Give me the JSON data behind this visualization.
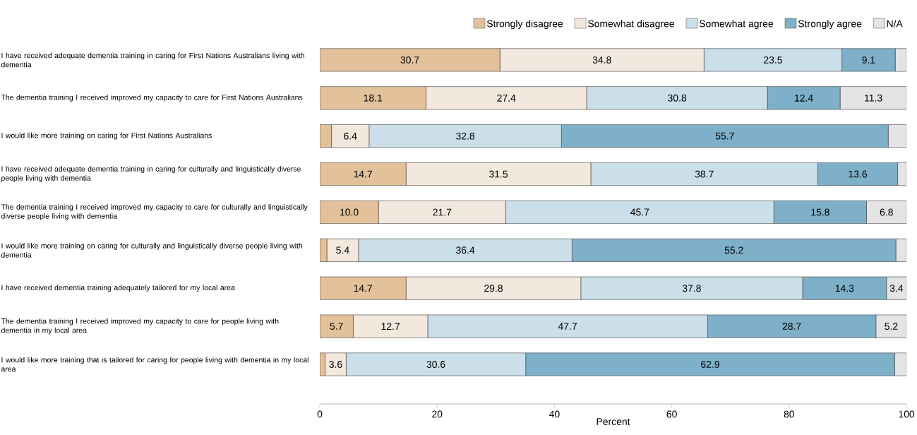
{
  "chart_data": {
    "type": "bar",
    "orientation": "horizontal",
    "stacked": true,
    "xlabel": "Percent",
    "xlim": [
      0,
      100
    ],
    "xticks": [
      0,
      20,
      40,
      60,
      80,
      100
    ],
    "legend": "top",
    "grid": false,
    "categories": [
      "I have received adequate dementia training in caring for First Nations Australians living with dementia",
      "The dementia training I received improved my capacity to care for First Nations Australians",
      "I would like more training on caring for First Nations Australians",
      "I have received adequate dementia training in caring for culturally and linguistically diverse people living with dementia",
      "The dementia training I received improved my capacity to care for culturally and linguistically diverse people living with dementia",
      "I would like more training on caring for culturally and linguistically diverse people living with dementia",
      "I have received dementia training adequately tailored for my local area",
      "The dementia training I received improved my capacity to care for people living with dementia in my local area",
      "I would like more training that is tailored for caring for people living with dementia in my local area"
    ],
    "series": [
      {
        "name": "Strongly disagree",
        "color": "#e3c29b",
        "values": [
          30.7,
          18.1,
          2.0,
          14.7,
          10.0,
          1.2,
          14.7,
          5.7,
          0.9
        ],
        "value_labels": [
          "30.7",
          "18.1",
          null,
          "14.7",
          "10.0",
          null,
          "14.7",
          "5.7",
          null
        ]
      },
      {
        "name": "Somewhat disagree",
        "color": "#f3e8dd",
        "values": [
          34.8,
          27.4,
          6.4,
          31.5,
          21.7,
          5.4,
          29.8,
          12.7,
          3.6
        ],
        "value_labels": [
          "34.8",
          "27.4",
          "6.4",
          "31.5",
          "21.7",
          "5.4",
          "29.8",
          "12.7",
          "3.6"
        ]
      },
      {
        "name": "Somewhat agree",
        "color": "#cadfe9",
        "values": [
          23.5,
          30.8,
          32.8,
          38.7,
          45.7,
          36.4,
          37.8,
          47.7,
          30.6
        ],
        "value_labels": [
          "23.5",
          "30.8",
          "32.8",
          "38.7",
          "45.7",
          "36.4",
          "37.8",
          "47.7",
          "30.6"
        ]
      },
      {
        "name": "Strongly agree",
        "color": "#7eb0c9",
        "values": [
          9.1,
          12.4,
          55.7,
          13.6,
          15.8,
          55.2,
          14.3,
          28.7,
          62.9
        ],
        "value_labels": [
          "9.1",
          "12.4",
          "55.7",
          "13.6",
          "15.8",
          "55.2",
          "14.3",
          "28.7",
          "62.9"
        ]
      },
      {
        "name": "N/A",
        "color": "#e4e4e4",
        "values": [
          1.9,
          11.3,
          3.1,
          1.5,
          6.8,
          1.8,
          3.4,
          5.2,
          2.0
        ],
        "value_labels": [
          null,
          "11.3",
          null,
          null,
          "6.8",
          null,
          "3.4",
          "5.2",
          null
        ]
      }
    ]
  }
}
